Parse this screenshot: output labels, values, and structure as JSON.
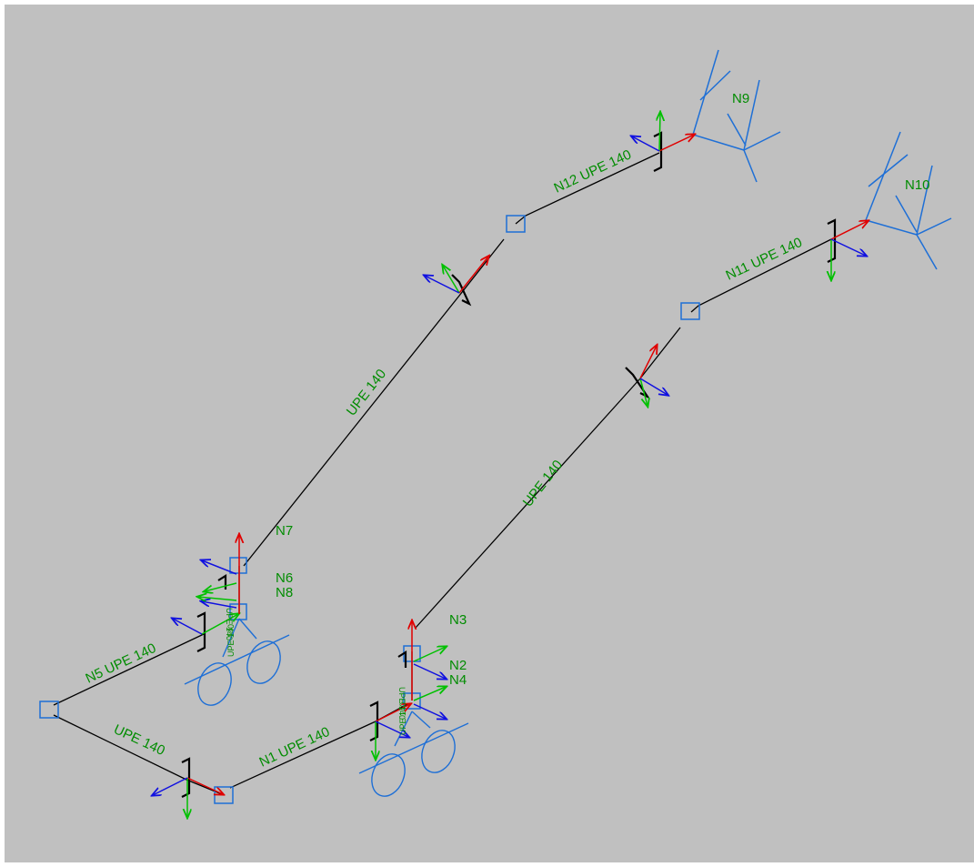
{
  "colors": {
    "background": "#c0c0c0",
    "member": "#000000",
    "label": "#008c00",
    "support": "#1e6fd6",
    "axis_x": "#e00000",
    "axis_y": "#00c000",
    "axis_z": "#1010e0"
  },
  "labels": {
    "upe_top_long": "UPE 140",
    "upe_bottom_long": "UPE 140",
    "n12_upe": "N12 UPE 140",
    "n11_upe": "N11 UPE 140",
    "n5_upe": "N5 UPE 140",
    "upe_bottom_left": "UPE 140",
    "n1_upe": "N1 UPE 140",
    "node_n9": "N9",
    "node_n10": "N10",
    "node_n7": "N7",
    "node_n6": "N6",
    "node_n8": "N8",
    "node_n3": "N3",
    "node_n2": "N2",
    "node_n4": "N4",
    "section_left_a": "UPE 140",
    "section_left_b": "UPE 140",
    "section_right_a": "UPE 140",
    "section_right_b": "UPE 140"
  }
}
